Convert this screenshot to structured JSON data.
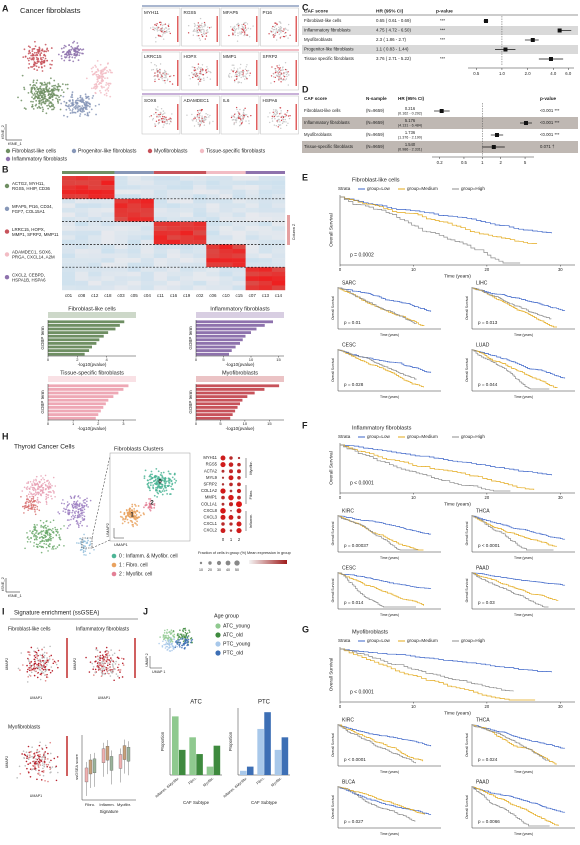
{
  "A": {
    "label": "A",
    "title": "Cancer fibroblasts",
    "axis_x": "tSNE_1",
    "axis_y": "tSNE_2",
    "legend": [
      {
        "name": "Fibroblast-like cells",
        "color": "#6f8f63"
      },
      {
        "name": "Progenitor-like fibroblasts",
        "color": "#8797b8"
      },
      {
        "name": "Myofibroblasts",
        "color": "#c7525a"
      },
      {
        "name": "Tissue-specific fibroblasts",
        "color": "#f2bcc4"
      },
      {
        "name": "Inflammatory fibroblasts",
        "color": "#8e72ad"
      }
    ],
    "genes": [
      "MYH11",
      "RGS5",
      "MFAP5",
      "PI16",
      "LRRC15",
      "HOPX",
      "MMP1",
      "SFRP2",
      "SOX6",
      "ADAMDEC1",
      "IL6",
      "HSPA6"
    ]
  },
  "B": {
    "label": "B",
    "gene_groups": [
      [
        "ACTG2, MYH11,",
        "RGS5, HHIP, CD36"
      ],
      [
        "MFAP5, PI16, CD34,",
        "FGF7, COL15A1"
      ],
      [
        "LRRC15, HOPX,",
        "MMP1, SFRP2, MMP11"
      ],
      [
        "ADAMDEC1, SOX6,",
        "PRGA, CXCL14, A2M"
      ],
      [
        "CXCL2, CEBPD,",
        "HSPA1B, HSPA6"
      ]
    ],
    "group_colors": [
      "#6f8f63",
      "#8797b8",
      "#c7525a",
      "#f2bcc4",
      "#8e72ad"
    ],
    "clusters": [
      "c01",
      "c08",
      "c12",
      "c18",
      "c03",
      "c05",
      "c04",
      "c11",
      "c16",
      "c19",
      "c02",
      "c06",
      "c10",
      "c15",
      "c07",
      "c13",
      "c14"
    ],
    "scale_label": "Column Z",
    "go_x_label": "-log10(pvalue)",
    "go_y_label": "GOBP term",
    "go_charts": [
      {
        "title": "Fibroblast-like cells",
        "color": "#6f8f63",
        "values": [
          5.2,
          4.9,
          4.6,
          4.1,
          3.8,
          3.5,
          3.3,
          3.0,
          2.8,
          2.5
        ],
        "xlim": [
          0,
          6
        ],
        "xticks": [
          0,
          2,
          4
        ]
      },
      {
        "title": "Inflammatory fibroblasts",
        "color": "#8e72ad",
        "values": [
          14,
          12.5,
          11,
          10,
          9,
          8.5,
          8,
          7.2,
          6.5,
          6
        ],
        "xlim": [
          0,
          16
        ],
        "xticks": [
          0,
          5,
          10,
          15
        ]
      },
      {
        "title": "Tissue-specific fibroblasts",
        "color": "#eea8b5",
        "values": [
          3.2,
          3.0,
          2.8,
          2.6,
          2.4,
          2.3,
          2.2,
          2.1,
          2.0,
          1.9
        ],
        "xlim": [
          0,
          3.5
        ],
        "xticks": [
          0,
          1,
          2,
          3
        ]
      },
      {
        "title": "Myofibroblasts",
        "color": "#c7525a",
        "values": [
          17,
          14,
          12,
          10.5,
          9.5,
          9,
          8.5,
          8,
          7.5,
          7
        ],
        "xlim": [
          0,
          18
        ],
        "xticks": [
          0,
          5,
          10,
          15
        ]
      }
    ]
  },
  "C": {
    "label": "C",
    "headers": [
      "CAF score",
      "HR (95% CI)",
      "p-value"
    ],
    "rows": [
      {
        "name": "Fibroblast-like cells",
        "hr_label": "0.65 ( 0.61 - 0.69)",
        "sig": "***",
        "hr": 0.65,
        "lo": 0.61,
        "hi": 0.69
      },
      {
        "name": "Inflammatory fibroblasts",
        "hr_label": "4.75 ( 4.72 - 6.50)",
        "sig": "***",
        "hr": 4.75,
        "lo": 4.72,
        "hi": 6.5
      },
      {
        "name": "Myofibroblasts",
        "hr_label": "2.3 ( 1.86 - 2.7)",
        "sig": "***",
        "hr": 2.3,
        "lo": 1.86,
        "hi": 2.7
      },
      {
        "name": "Progenitor-like fibroblasts",
        "hr_label": "1.1 ( 0.83 - 1.44)",
        "sig": "",
        "hr": 1.1,
        "lo": 0.83,
        "hi": 1.44
      },
      {
        "name": "Tissue specific fibroblasts",
        "hr_label": "3.76 ( 2.71 - 5.22)",
        "sig": "***",
        "hr": 3.76,
        "lo": 2.71,
        "hi": 5.22
      }
    ],
    "xlim": [
      0.4,
      7
    ],
    "xticks": [
      0.5,
      {
        "value": 1,
        "label": "1.0"
      },
      {
        "value": 2,
        "label": "2.0"
      },
      {
        "value": 4,
        "label": "4.0"
      },
      {
        "value": 6,
        "label": "6.0"
      }
    ]
  },
  "D": {
    "label": "D",
    "headers": [
      "CAF score",
      "N-sample",
      "HR (95% CI)",
      "p-value"
    ],
    "rows": [
      {
        "name": "Fibroblast-like cells",
        "n": "(N=9659)",
        "hr_label": "0.216",
        "ci": "(0.162 - 0.292)",
        "p": "<0.001 ***",
        "hr": 0.216,
        "lo": 0.162,
        "hi": 0.292
      },
      {
        "name": "Inflammatory fibroblasts",
        "n": "(N=9659)",
        "hr_label": "5.176",
        "ci": "(4.131 - 6.484)",
        "p": "<0.001 ***",
        "hr": 5.176,
        "lo": 4.131,
        "hi": 6.484
      },
      {
        "name": "Myofibroblasts",
        "n": "(N=9659)",
        "hr_label": "1.736",
        "ci": "(1.376 - 2.190)",
        "p": "<0.001 ***",
        "hr": 1.736,
        "lo": 1.376,
        "hi": 2.19
      },
      {
        "name": "Tissue-specific fibroblasts",
        "n": "(N=9659)",
        "hr_label": "1.540",
        "ci": "(0.986 - 2.331)",
        "p": "0.071 †",
        "hr": 1.54,
        "lo": 0.986,
        "hi": 2.331
      }
    ],
    "xlim": [
      0.15,
      7
    ],
    "xticks": [
      0.2,
      0.5,
      1,
      2,
      5
    ]
  },
  "E": {
    "label": "E",
    "title": "Fibroblast-like cells",
    "strata": "Strata",
    "groups": [
      {
        "name": "group=Low",
        "color": "#3b64c8"
      },
      {
        "name": "group=Medium",
        "color": "#e3a91a"
      },
      {
        "name": "group=High",
        "color": "#8c8c8c"
      }
    ],
    "y_label": "Overall Survival",
    "x_label": "Time (years)",
    "p": "p = 0.0002",
    "xlim": [
      0,
      32
    ],
    "xticks": [
      0,
      10,
      20,
      30
    ],
    "sub_y_label": "Overall Survival",
    "sub_x_label": "Time (years)",
    "subplots": [
      {
        "title": "SARC",
        "p": "p = 0.01"
      },
      {
        "title": "LIHC",
        "p": "p = 0.013"
      },
      {
        "title": "CESC",
        "p": "p = 0.028"
      },
      {
        "title": "LUAD",
        "p": "p = 0.044"
      }
    ]
  },
  "F": {
    "label": "F",
    "title": "Inflammatory fibroblasts",
    "strata": "Strata",
    "groups": [
      {
        "name": "group=Low",
        "color": "#3b64c8"
      },
      {
        "name": "group=Medium",
        "color": "#e3a91a"
      },
      {
        "name": "group=High",
        "color": "#8c8c8c"
      }
    ],
    "y_label": "Overall Survival",
    "x_label": "Time (years)",
    "p": "p < 0.0001",
    "xlim": [
      0,
      32
    ],
    "xticks": [
      0,
      10,
      20,
      30
    ],
    "sub_y_label": "Overall Survival",
    "sub_x_label": "Time (years)",
    "subplots": [
      {
        "title": "KIRC",
        "p": "p = 0.00037"
      },
      {
        "title": "THCA",
        "p": "p < 0.0001"
      },
      {
        "title": "CESC",
        "p": "p = 0.014"
      },
      {
        "title": "PAAD",
        "p": "p = 0.03"
      }
    ]
  },
  "G": {
    "label": "G",
    "title": "Myofibroblasts",
    "strata": "Strata",
    "groups": [
      {
        "name": "group=Low",
        "color": "#3b64c8"
      },
      {
        "name": "group=Medium",
        "color": "#e3a91a"
      },
      {
        "name": "group=High",
        "color": "#8c8c8c"
      }
    ],
    "y_label": "Overall Survival",
    "x_label": "Time (years)",
    "p": "p < 0.0001",
    "xlim": [
      0,
      32
    ],
    "xticks": [
      0,
      10,
      20,
      30
    ],
    "sub_y_label": "Overall Survival",
    "sub_x_label": "Time (years)",
    "subplots": [
      {
        "title": "KIRC",
        "p": "p < 0.0001"
      },
      {
        "title": "THCA",
        "p": "p = 0.024"
      },
      {
        "title": "BLCA",
        "p": "p = 0.027"
      },
      {
        "title": "PAAD",
        "p": "p = 0.0066"
      }
    ]
  },
  "H": {
    "label": "H",
    "title": "Thyroid Cancer Cells",
    "axis_x": "tSNE_1",
    "axis_y": "tSNE_2",
    "cluster_title": "Fibroblasts Clusters",
    "umap_x": "UMAP1",
    "umap_y": "UMAP2",
    "cluster_ids": [
      "0",
      "1",
      "2"
    ],
    "cluster_colors": [
      "#4db596",
      "#e9a25f",
      "#e37f95"
    ],
    "cluster_legend": [
      "0 : Inflamm. & Myofibr. cell",
      "1 : Fibro. cell",
      "2 : Myofibr. cell"
    ],
    "dot_genes": [
      "MYH11",
      "RGS5",
      "ACTA2",
      "MYL9",
      "SFRP2",
      "COL1A2",
      "MMP1",
      "COL1A1",
      "CXCL8",
      "CXCL3",
      "CXCL1",
      "CXCL2"
    ],
    "dot_groups": [
      "Myofibr.",
      "Fibro.",
      "Inflamm."
    ],
    "size_title": "Fraction of cells in group (%)",
    "size_ticks": [
      10,
      20,
      30,
      40,
      50
    ],
    "color_title": "Mean expression in group"
  },
  "I": {
    "label": "I",
    "title": "Signature enrichment (ssGSEA)",
    "maps": [
      "Fibroblast-like cells",
      "Inflammatory fibroblasts",
      "Myofibroblasts"
    ],
    "axis_x": "UMAP1",
    "axis_y": "UMAP2",
    "box_categories": [
      "Fibro.",
      "Inflamm.",
      "Myofibr."
    ],
    "box_x_label": "Signature",
    "box_y_label": "ssGSEA score"
  },
  "J": {
    "label": "J",
    "legend_title": "Age group",
    "axis_x": "UMAP 1",
    "axis_y": "UMAP 2",
    "groups": [
      {
        "name": "ATC_young",
        "color": "#8fc98f"
      },
      {
        "name": "ATC_old",
        "color": "#3e8a3e"
      },
      {
        "name": "PTC_young",
        "color": "#a8c8ea"
      },
      {
        "name": "PTC_old",
        "color": "#3d6fb5"
      }
    ],
    "categories": [
      "Inflamm. &Myofibr.",
      "Fibro.",
      "Myofibr."
    ],
    "x_label": "CAF Subtype",
    "y_label": "Proportion",
    "ylim": [
      0,
      0.8
    ],
    "charts": [
      {
        "title": "ATC",
        "series": [
          {
            "color": "#8fc98f",
            "values": [
              0.7,
              0.45,
              0.1
            ]
          },
          {
            "color": "#3e8a3e",
            "values": [
              0.3,
              0.25,
              0.35
            ]
          }
        ]
      },
      {
        "title": "PTC",
        "series": [
          {
            "color": "#a8c8ea",
            "values": [
              0.05,
              0.55,
              0.3
            ]
          },
          {
            "color": "#3d6fb5",
            "values": [
              0.1,
              0.75,
              0.45
            ]
          }
        ]
      }
    ]
  }
}
